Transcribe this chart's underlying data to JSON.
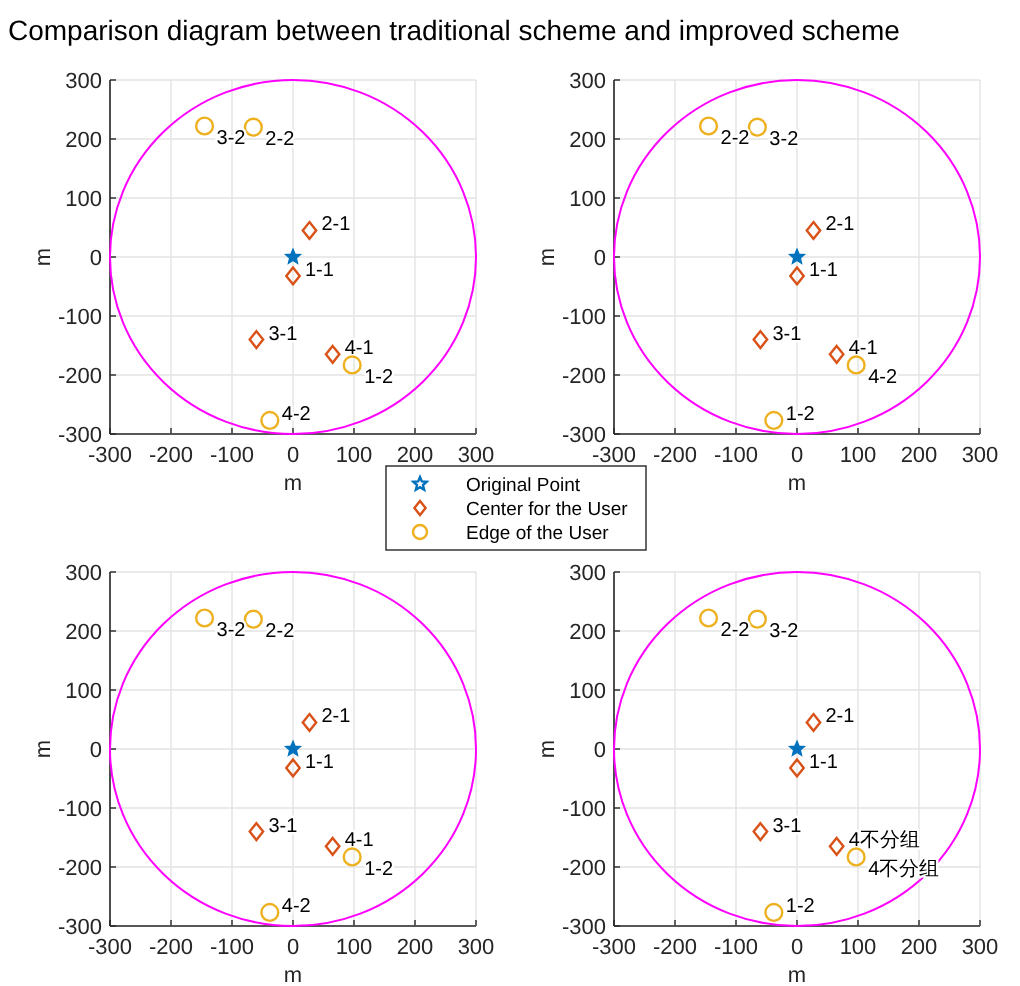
{
  "chart_data": [
    {
      "type": "scatter",
      "title": "Comparison diagram between traditional scheme and improved scheme",
      "xlabel": "m",
      "ylabel": "m",
      "xlim": [
        -300,
        300
      ],
      "ylim": [
        -300,
        300
      ],
      "xticks": [
        -300,
        -200,
        -100,
        0,
        100,
        200,
        300
      ],
      "yticks": [
        -300,
        -200,
        -100,
        0,
        100,
        200,
        300
      ],
      "grid": true,
      "legend": "bottom",
      "annotations": [
        {
          "text": "1-1",
          "x": 0,
          "y": -32
        },
        {
          "text": "2-1",
          "x": 27,
          "y": 45
        },
        {
          "text": "3-1",
          "x": -60,
          "y": -140
        },
        {
          "text": "4-1",
          "x": 65,
          "y": -165
        },
        {
          "text": "1-2",
          "x": 97,
          "y": -183
        },
        {
          "text": "2-2",
          "x": -65,
          "y": 220
        },
        {
          "text": "3-2",
          "x": -145,
          "y": 222
        },
        {
          "text": "4-2",
          "x": -38,
          "y": -277
        }
      ],
      "series": [
        {
          "name": "Original Point",
          "type": "scatter",
          "color": "#0072bd",
          "marker": "star",
          "x": [
            0
          ],
          "values": [
            0
          ]
        },
        {
          "name": "Center for the User",
          "type": "scatter",
          "color": "#d95319",
          "marker": "diamond",
          "x": [
            0,
            27,
            -60,
            65
          ],
          "values": [
            -32,
            45,
            -140,
            -165
          ]
        },
        {
          "name": "Edge of the User",
          "type": "scatter",
          "color": "#edb120",
          "marker": "circle",
          "x": [
            97,
            -65,
            -145,
            -38
          ],
          "values": [
            -183,
            220,
            222,
            -277
          ]
        }
      ]
    },
    {
      "type": "scatter",
      "xlabel": "m",
      "ylabel": "m",
      "xlim": [
        -300,
        300
      ],
      "ylim": [
        -300,
        300
      ],
      "xticks": [
        -300,
        -200,
        -100,
        0,
        100,
        200,
        300
      ],
      "yticks": [
        -300,
        -200,
        -100,
        0,
        100,
        200,
        300
      ],
      "grid": true,
      "annotations": [
        {
          "text": "1-1",
          "x": 0,
          "y": -32
        },
        {
          "text": "2-1",
          "x": 27,
          "y": 45
        },
        {
          "text": "3-1",
          "x": -60,
          "y": -140
        },
        {
          "text": "4-1",
          "x": 65,
          "y": -165
        },
        {
          "text": "1-2",
          "x": -38,
          "y": -277
        },
        {
          "text": "2-2",
          "x": -145,
          "y": 222
        },
        {
          "text": "3-2",
          "x": -65,
          "y": 220
        },
        {
          "text": "4-2",
          "x": 97,
          "y": -183
        }
      ],
      "series": [
        {
          "type": "scatter",
          "color": "#0072bd",
          "marker": "star",
          "x": [
            0
          ],
          "values": [
            0
          ]
        },
        {
          "type": "scatter",
          "color": "#d95319",
          "marker": "diamond",
          "x": [
            0,
            27,
            -60,
            65
          ],
          "values": [
            -32,
            45,
            -140,
            -165
          ]
        },
        {
          "type": "scatter",
          "color": "#edb120",
          "marker": "circle",
          "x": [
            -38,
            -145,
            -65,
            97
          ],
          "values": [
            -277,
            222,
            220,
            -183
          ]
        }
      ]
    },
    {
      "type": "scatter",
      "xlabel": "m",
      "ylabel": "m",
      "xlim": [
        -300,
        300
      ],
      "ylim": [
        -300,
        300
      ],
      "xticks": [
        -300,
        -200,
        -100,
        0,
        100,
        200,
        300
      ],
      "yticks": [
        -300,
        -200,
        -100,
        0,
        100,
        200,
        300
      ],
      "grid": true,
      "annotations": [
        {
          "text": "1-1",
          "x": 0,
          "y": -32
        },
        {
          "text": "2-1",
          "x": 27,
          "y": 45
        },
        {
          "text": "3-1",
          "x": -60,
          "y": -140
        },
        {
          "text": "4-1",
          "x": 65,
          "y": -165
        },
        {
          "text": "1-2",
          "x": 97,
          "y": -183
        },
        {
          "text": "2-2",
          "x": -65,
          "y": 220
        },
        {
          "text": "3-2",
          "x": -145,
          "y": 222
        },
        {
          "text": "4-2",
          "x": -38,
          "y": -277
        }
      ],
      "series": [
        {
          "type": "scatter",
          "color": "#0072bd",
          "marker": "star",
          "x": [
            0
          ],
          "values": [
            0
          ]
        },
        {
          "type": "scatter",
          "color": "#d95319",
          "marker": "diamond",
          "x": [
            0,
            27,
            -60,
            65
          ],
          "values": [
            -32,
            45,
            -140,
            -165
          ]
        },
        {
          "type": "scatter",
          "color": "#edb120",
          "marker": "circle",
          "x": [
            97,
            -65,
            -145,
            -38
          ],
          "values": [
            -183,
            220,
            222,
            -277
          ]
        }
      ]
    },
    {
      "type": "scatter",
      "xlabel": "m",
      "ylabel": "m",
      "xlim": [
        -300,
        300
      ],
      "ylim": [
        -300,
        300
      ],
      "xticks": [
        -300,
        -200,
        -100,
        0,
        100,
        200,
        300
      ],
      "yticks": [
        -300,
        -200,
        -100,
        0,
        100,
        200,
        300
      ],
      "grid": true,
      "annotations": [
        {
          "text": "1-1",
          "x": 0,
          "y": -32
        },
        {
          "text": "2-1",
          "x": 27,
          "y": 45
        },
        {
          "text": "3-1",
          "x": -60,
          "y": -140
        },
        {
          "text": "4不分组",
          "x": 65,
          "y": -165
        },
        {
          "text": "1-2",
          "x": -38,
          "y": -277
        },
        {
          "text": "2-2",
          "x": -145,
          "y": 222
        },
        {
          "text": "3-2",
          "x": -65,
          "y": 220
        },
        {
          "text": "4不分组",
          "x": 97,
          "y": -183
        }
      ],
      "series": [
        {
          "type": "scatter",
          "color": "#0072bd",
          "marker": "star",
          "x": [
            0
          ],
          "values": [
            0
          ]
        },
        {
          "type": "scatter",
          "color": "#d95319",
          "marker": "diamond",
          "x": [
            0,
            27,
            -60,
            65
          ],
          "values": [
            -32,
            45,
            -140,
            -165
          ]
        },
        {
          "type": "scatter",
          "color": "#edb120",
          "marker": "circle",
          "x": [
            -38,
            -145,
            -65,
            97
          ],
          "values": [
            -277,
            222,
            220,
            -183
          ]
        }
      ]
    }
  ]
}
